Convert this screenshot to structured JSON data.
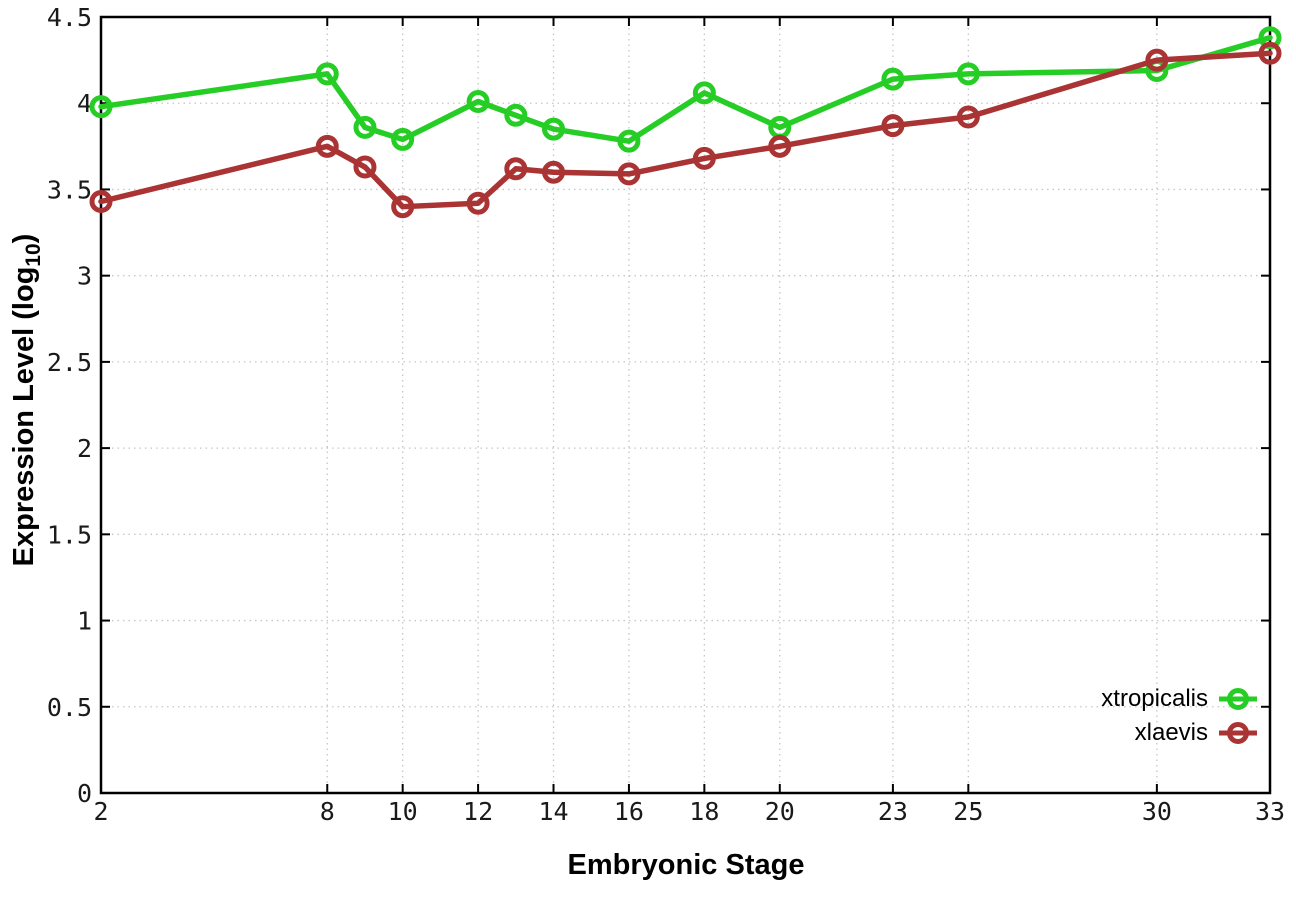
{
  "chart_data": {
    "type": "line",
    "title": "",
    "xlabel": "Embryonic Stage",
    "ylabel": "Expression Level (log10)",
    "ylabel_rich": {
      "main": "Expression Level (log",
      "sub": "10",
      "suffix": ")"
    },
    "xlim": [
      2,
      33
    ],
    "ylim": [
      0,
      4.5
    ],
    "grid": true,
    "legend_position": "inside-bottom-right",
    "x_tick_values": [
      2,
      8,
      10,
      12,
      14,
      16,
      18,
      20,
      23,
      25,
      30,
      33
    ],
    "x_tick_labels": [
      "2",
      "8",
      "10",
      "12",
      "14",
      "16",
      "18",
      "20",
      "23",
      "25",
      "30",
      "33"
    ],
    "y_tick_values": [
      0,
      0.5,
      1,
      1.5,
      2,
      2.5,
      3,
      3.5,
      4,
      4.5
    ],
    "y_tick_labels": [
      "0",
      "0.5",
      "1",
      "1.5",
      "2",
      "2.5",
      "3",
      "3.5",
      "4",
      "4.5"
    ],
    "x": [
      2,
      8,
      9,
      10,
      12,
      13,
      14,
      16,
      18,
      20,
      23,
      25,
      30,
      33
    ],
    "series": [
      {
        "name": "xtropicalis",
        "color": "#25cd25",
        "values": [
          3.98,
          4.17,
          3.86,
          3.79,
          4.01,
          3.93,
          3.85,
          3.78,
          4.06,
          3.86,
          4.14,
          4.17,
          4.19,
          4.38
        ]
      },
      {
        "name": "xlaevis",
        "color": "#aa3333",
        "values": [
          3.43,
          3.75,
          3.63,
          3.4,
          3.42,
          3.62,
          3.6,
          3.59,
          3.68,
          3.75,
          3.87,
          3.92,
          4.25,
          4.29
        ]
      }
    ],
    "colors": {
      "grid": "#c6c6c6",
      "axis": "#000000",
      "tick_text": "#1a1a1a"
    }
  }
}
